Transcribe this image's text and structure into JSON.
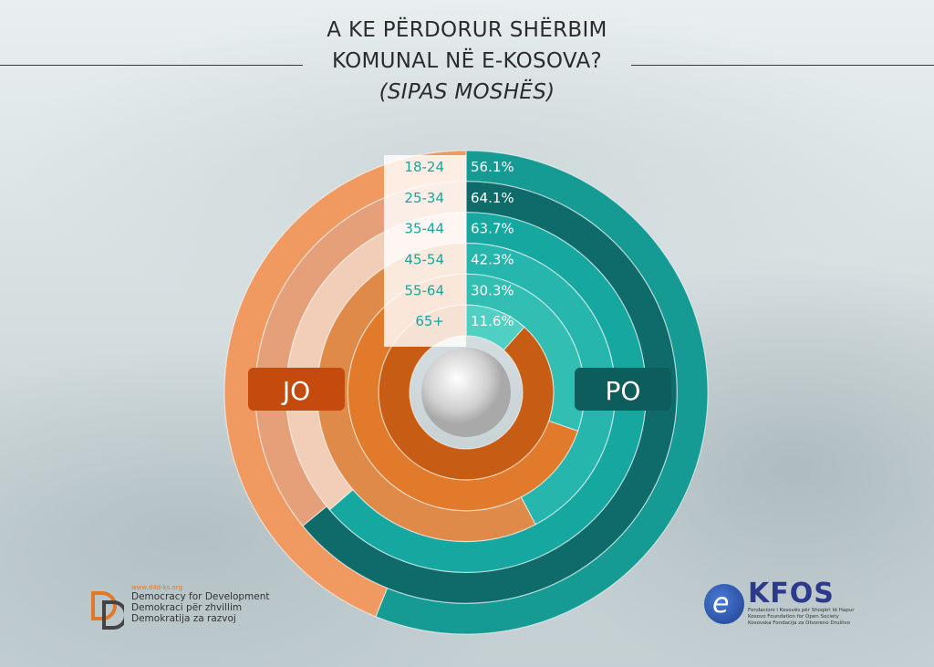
{
  "title_line1": "A KE PËRDORUR SHËRBIM",
  "title_line2": "KOMUNAL NË E-KOSOVA?",
  "title_line3": "(SIPAS MOSHËS)",
  "chart_data": {
    "type": "radial-bar",
    "categories": [
      "18-24",
      "25-34",
      "35-44",
      "45-54",
      "55-64",
      "65+"
    ],
    "series": [
      {
        "name": "PO",
        "values": [
          56.1,
          64.1,
          63.7,
          42.3,
          30.3,
          11.6
        ]
      },
      {
        "name": "JO",
        "values": [
          43.9,
          35.9,
          36.3,
          57.7,
          69.7,
          88.4
        ]
      }
    ],
    "value_labels": [
      "56.1%",
      "64.1%",
      "63.7%",
      "42.3%",
      "30.3%",
      "11.6%"
    ],
    "legend": {
      "yes": "PO",
      "no": "JO"
    },
    "colors": {
      "po": [
        "#169b94",
        "#0f6b6a",
        "#16a7a0",
        "#27b6ad",
        "#33beb3",
        "#4fd0c2"
      ],
      "jo": [
        "#f09a62",
        "#e5a07a",
        "#f2cdb7",
        "#e08a4a",
        "#e27a2c",
        "#c75d14"
      ],
      "label_bg_po": "#0d5d5d",
      "label_bg_jo": "#c44a0e"
    }
  },
  "logos": {
    "left_url": "www.d4d-ks.org",
    "left_lines": [
      "Democracy for Development",
      "Demokraci për zhvillim",
      "Demokratija za razvoj"
    ],
    "right_name": "KFOS",
    "right_lines": [
      "Fondacioni i Kosovës për Shoqëri të Hapur",
      "Kosovo Foundation for Open Society",
      "Kosovska Fondacija za Otvoreno Društvo"
    ]
  }
}
